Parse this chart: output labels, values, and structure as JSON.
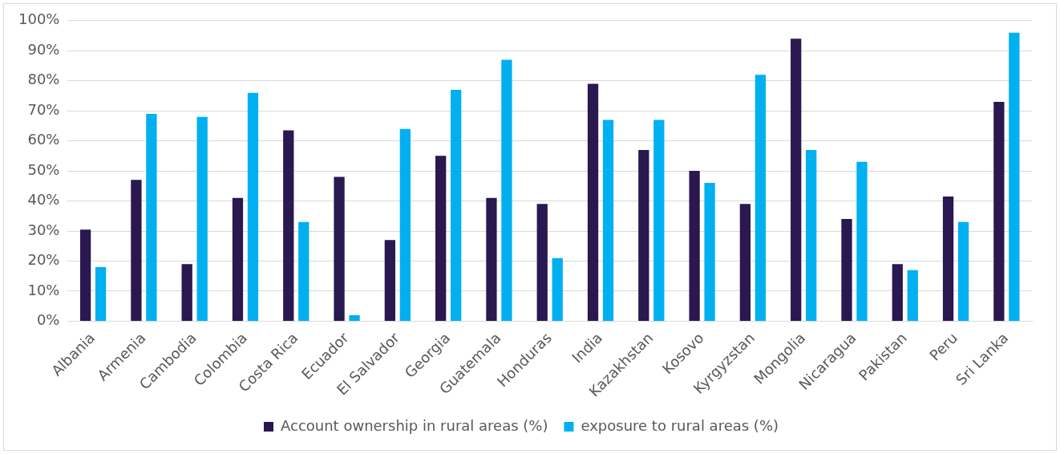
{
  "chart_data": {
    "type": "bar",
    "categories": [
      "Albania",
      "Armenia",
      "Cambodia",
      "Colombia",
      "Costa Rica",
      "Ecuador",
      "El Salvador",
      "Georgia",
      "Guatemala",
      "Honduras",
      "India",
      "Kazakhstan",
      "Kosovo",
      "Kyrgyzstan",
      "Mongolia",
      "Nicaragua",
      "Pakistan",
      "Peru",
      "Sri Lanka"
    ],
    "series": [
      {
        "name": "Account ownership in rural areas (%)",
        "color": "#2a1850",
        "values": [
          30.5,
          47,
          19,
          41,
          63.5,
          48,
          27,
          55,
          41,
          39,
          79,
          57,
          50,
          39,
          94,
          34,
          19,
          41.5,
          73
        ]
      },
      {
        "name": "exposure to rural areas (%)",
        "color": "#00b0f0",
        "values": [
          18,
          69,
          68,
          76,
          33,
          2,
          64,
          77,
          87,
          21,
          67,
          67,
          46,
          82,
          57,
          53,
          17,
          33,
          96
        ]
      }
    ],
    "ylim": [
      0,
      100
    ],
    "yticks": [
      {
        "value": 0,
        "label": "0%"
      },
      {
        "value": 10,
        "label": "10%"
      },
      {
        "value": 20,
        "label": "20%"
      },
      {
        "value": 30,
        "label": "30%"
      },
      {
        "value": 40,
        "label": "40%"
      },
      {
        "value": 50,
        "label": "50%"
      },
      {
        "value": 60,
        "label": "60%"
      },
      {
        "value": 70,
        "label": "70%"
      },
      {
        "value": 80,
        "label": "80%"
      },
      {
        "value": 90,
        "label": "90%"
      },
      {
        "value": 100,
        "label": "100%"
      }
    ],
    "grid": "y",
    "legend": "bottom"
  }
}
